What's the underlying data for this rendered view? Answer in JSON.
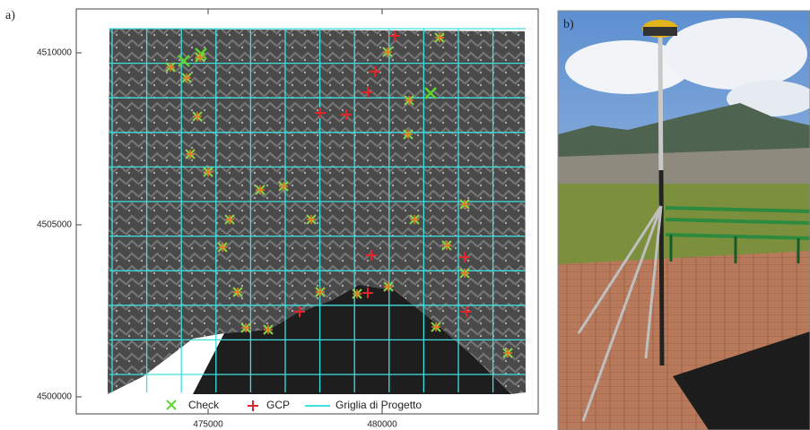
{
  "panel_a": {
    "label": "a)",
    "y_ticks": [
      "4510000",
      "4505000",
      "4500000"
    ],
    "x_ticks": [
      "475000",
      "480000"
    ],
    "legend": [
      "Check",
      "GCP",
      "Griglia di Progetto"
    ]
  },
  "panel_b": {
    "label": "b)"
  }
}
